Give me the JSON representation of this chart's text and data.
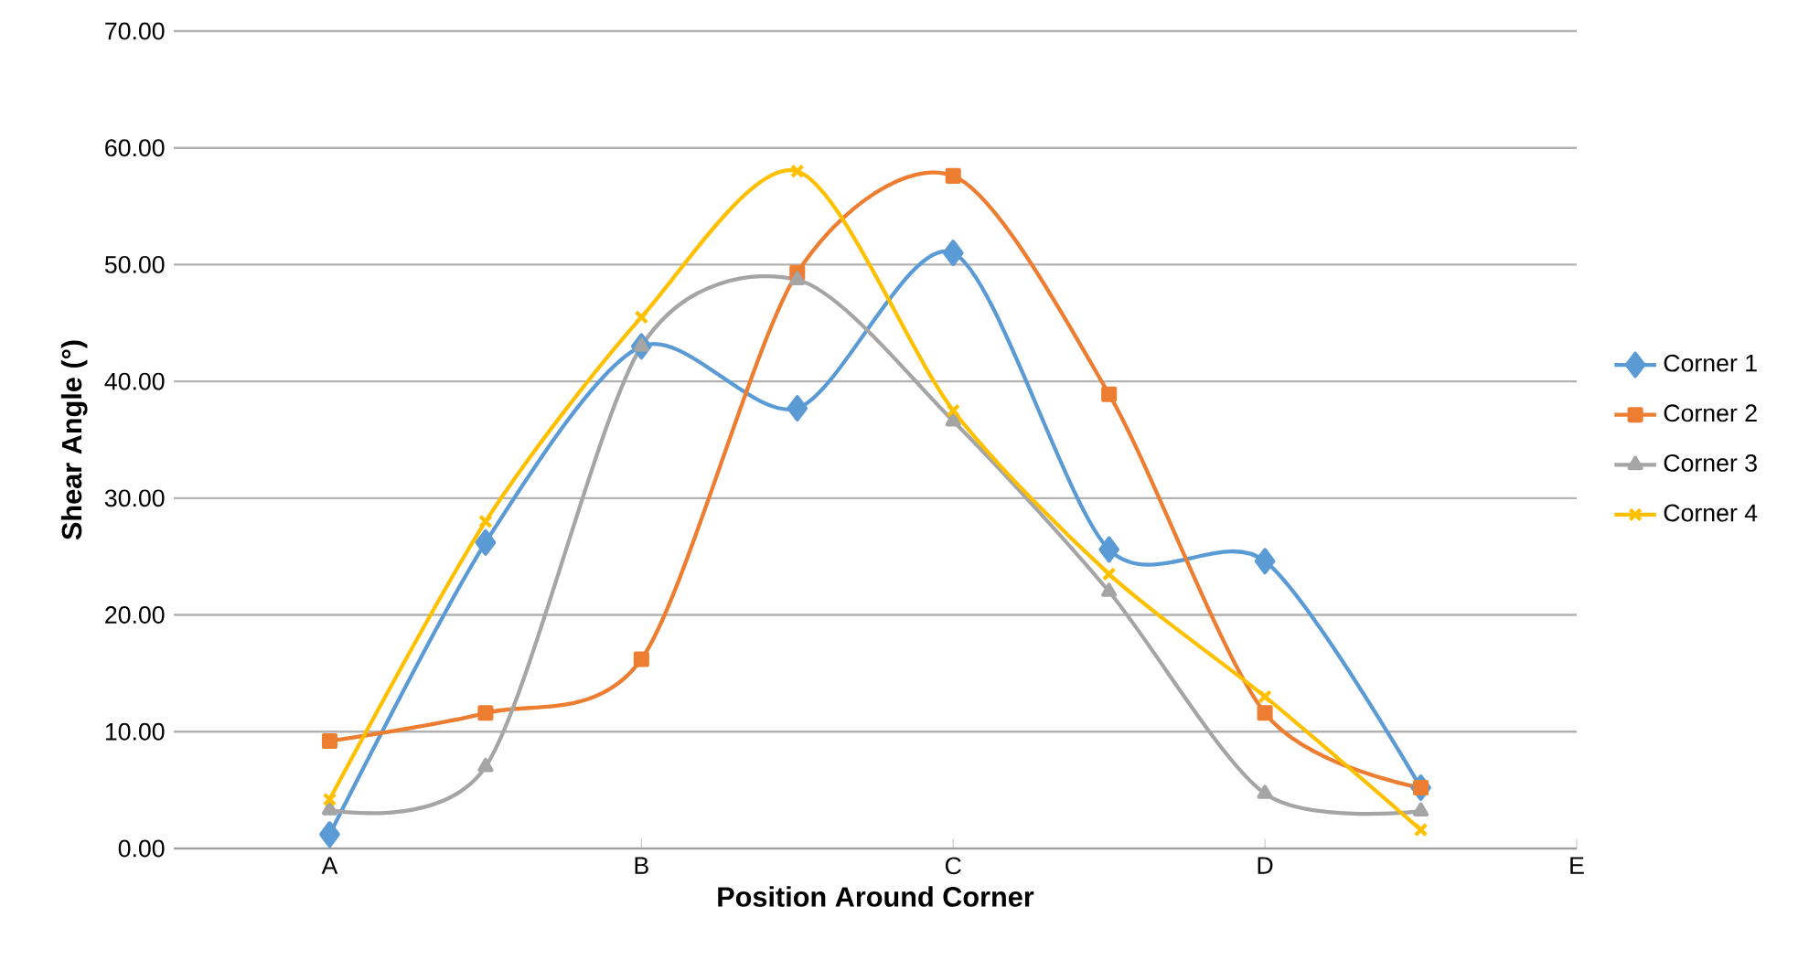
{
  "chart_data": {
    "type": "line",
    "xlabel": "Position Around Corner",
    "ylabel": "Shear Angle (°)",
    "categories": [
      "A",
      null,
      "B",
      null,
      "C",
      null,
      "D",
      null,
      "E"
    ],
    "series": [
      {
        "name": "Corner 1",
        "color": "#5b9bd5",
        "marker": "diamond",
        "values": [
          1.2,
          26.2,
          43.0,
          37.7,
          51.0,
          25.6,
          24.6,
          5.2,
          null
        ]
      },
      {
        "name": "Corner 2",
        "color": "#ed7d31",
        "marker": "square",
        "values": [
          9.2,
          11.6,
          16.2,
          49.3,
          57.6,
          38.9,
          11.6,
          5.2,
          null
        ]
      },
      {
        "name": "Corner 3",
        "color": "#a5a5a5",
        "marker": "triangle",
        "values": [
          3.3,
          7.0,
          43.0,
          48.7,
          36.6,
          22.0,
          4.7,
          3.2,
          null
        ]
      },
      {
        "name": "Corner 4",
        "color": "#ffc000",
        "marker": "cross",
        "values": [
          4.2,
          28.0,
          45.5,
          58.0,
          37.5,
          23.5,
          13.0,
          1.6,
          null
        ]
      }
    ],
    "ylim": [
      0,
      70
    ],
    "yticks": [
      {
        "value": 0,
        "label": "0.00"
      },
      {
        "value": 10,
        "label": "10.00"
      },
      {
        "value": 20,
        "label": "20.00"
      },
      {
        "value": 30,
        "label": "30.00"
      },
      {
        "value": 40,
        "label": "40.00"
      },
      {
        "value": 50,
        "label": "50.00"
      },
      {
        "value": 60,
        "label": "60.00"
      },
      {
        "value": 70,
        "label": "70.00"
      }
    ],
    "grid": "y",
    "legend": "right",
    "line_style": "solid"
  }
}
